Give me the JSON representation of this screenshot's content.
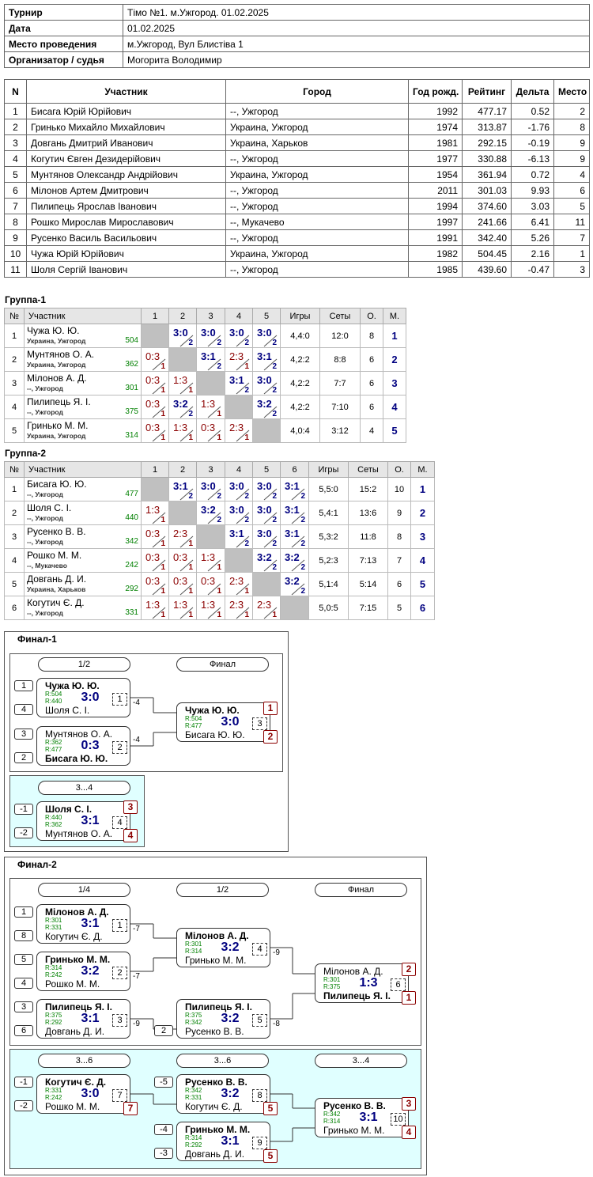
{
  "info": [
    {
      "label": "Турнир",
      "value": "Тімо №1. м.Ужгород. 01.02.2025"
    },
    {
      "label": "Дата",
      "value": "01.02.2025"
    },
    {
      "label": "Место проведения",
      "value": "м.Ужгород, Вул Блистіва 1"
    },
    {
      "label": "Организатор / судья",
      "value": "Могорита Володимир"
    }
  ],
  "participants": {
    "headers": [
      "N",
      "Участник",
      "Город",
      "Год рожд.",
      "Рейтинг",
      "Дельта",
      "Место"
    ],
    "rows": [
      [
        "1",
        "Бисага Юрій Юрійович",
        "--, Ужгород",
        "1992",
        "477.17",
        "0.52",
        "2"
      ],
      [
        "2",
        "Гринько Михайло Михайлович",
        "Украина, Ужгород",
        "1974",
        "313.87",
        "-1.76",
        "8"
      ],
      [
        "3",
        "Довгань Дмитрий Иванович",
        "Украина, Харьков",
        "1981",
        "292.15",
        "-0.19",
        "9"
      ],
      [
        "4",
        "Когутич Євген Дезидерійович",
        "--, Ужгород",
        "1977",
        "330.88",
        "-6.13",
        "9"
      ],
      [
        "5",
        "Мунтянов Олександр Андрійович",
        "Украина, Ужгород",
        "1954",
        "361.94",
        "0.72",
        "4"
      ],
      [
        "6",
        "Мілонов Артем Дмитрович",
        "--, Ужгород",
        "2011",
        "301.03",
        "9.93",
        "6"
      ],
      [
        "7",
        "Пилипець Ярослав Іванович",
        "--, Ужгород",
        "1994",
        "374.60",
        "3.03",
        "5"
      ],
      [
        "8",
        "Рошко Мирослав Мирославович",
        "--, Мукачево",
        "1997",
        "241.66",
        "6.41",
        "11"
      ],
      [
        "9",
        "Русенко Василь Васильович",
        "--, Ужгород",
        "1991",
        "342.40",
        "5.26",
        "7"
      ],
      [
        "10",
        "Чужа Юрій Юрійович",
        "Украина, Ужгород",
        "1982",
        "504.45",
        "2.16",
        "1"
      ],
      [
        "11",
        "Шоля Сергій Іванович",
        "--, Ужгород",
        "1985",
        "439.60",
        "-0.47",
        "3"
      ]
    ]
  },
  "groups": [
    {
      "title": "Группа-1",
      "headers": [
        "№",
        "Участник",
        "1",
        "2",
        "3",
        "4",
        "5",
        "Игры",
        "Сеты",
        "О.",
        "М."
      ],
      "rows": [
        {
          "num": "1",
          "name": "Чужа Ю. Ю.",
          "city": "Украина, Ужгород",
          "rating": "504",
          "results": [
            null,
            {
              "score": "3:0",
              "pts": "2"
            },
            {
              "score": "3:0",
              "pts": "2"
            },
            {
              "score": "3:0",
              "pts": "2"
            },
            {
              "score": "3:0",
              "pts": "2"
            }
          ],
          "games": "4,4:0",
          "sets": "12:0",
          "points": "8",
          "place": "1"
        },
        {
          "num": "2",
          "name": "Мунтянов О. А.",
          "city": "Украина, Ужгород",
          "rating": "362",
          "results": [
            {
              "score": "0:3",
              "pts": "1"
            },
            null,
            {
              "score": "3:1",
              "pts": "2"
            },
            {
              "score": "2:3",
              "pts": "1"
            },
            {
              "score": "3:1",
              "pts": "2"
            }
          ],
          "games": "4,2:2",
          "sets": "8:8",
          "points": "6",
          "place": "2"
        },
        {
          "num": "3",
          "name": "Мілонов А. Д.",
          "city": "--, Ужгород",
          "rating": "301",
          "results": [
            {
              "score": "0:3",
              "pts": "1"
            },
            {
              "score": "1:3",
              "pts": "1"
            },
            null,
            {
              "score": "3:1",
              "pts": "2"
            },
            {
              "score": "3:0",
              "pts": "2"
            }
          ],
          "games": "4,2:2",
          "sets": "7:7",
          "points": "6",
          "place": "3"
        },
        {
          "num": "4",
          "name": "Пилипець Я. І.",
          "city": "--, Ужгород",
          "rating": "375",
          "results": [
            {
              "score": "0:3",
              "pts": "1"
            },
            {
              "score": "3:2",
              "pts": "2"
            },
            {
              "score": "1:3",
              "pts": "1"
            },
            null,
            {
              "score": "3:2",
              "pts": "2"
            }
          ],
          "games": "4,2:2",
          "sets": "7:10",
          "points": "6",
          "place": "4"
        },
        {
          "num": "5",
          "name": "Гринько М. М.",
          "city": "Украина, Ужгород",
          "rating": "314",
          "results": [
            {
              "score": "0:3",
              "pts": "1"
            },
            {
              "score": "1:3",
              "pts": "1"
            },
            {
              "score": "0:3",
              "pts": "1"
            },
            {
              "score": "2:3",
              "pts": "1"
            },
            null
          ],
          "games": "4,0:4",
          "sets": "3:12",
          "points": "4",
          "place": "5"
        }
      ]
    },
    {
      "title": "Группа-2",
      "headers": [
        "№",
        "Участник",
        "1",
        "2",
        "3",
        "4",
        "5",
        "6",
        "Игры",
        "Сеты",
        "О.",
        "М."
      ],
      "rows": [
        {
          "num": "1",
          "name": "Бисага Ю. Ю.",
          "city": "--, Ужгород",
          "rating": "477",
          "results": [
            null,
            {
              "score": "3:1",
              "pts": "2"
            },
            {
              "score": "3:0",
              "pts": "2"
            },
            {
              "score": "3:0",
              "pts": "2"
            },
            {
              "score": "3:0",
              "pts": "2"
            },
            {
              "score": "3:1",
              "pts": "2"
            }
          ],
          "games": "5,5:0",
          "sets": "15:2",
          "points": "10",
          "place": "1"
        },
        {
          "num": "2",
          "name": "Шоля С. І.",
          "city": "--, Ужгород",
          "rating": "440",
          "results": [
            {
              "score": "1:3",
              "pts": "1"
            },
            null,
            {
              "score": "3:2",
              "pts": "2"
            },
            {
              "score": "3:0",
              "pts": "2"
            },
            {
              "score": "3:0",
              "pts": "2"
            },
            {
              "score": "3:1",
              "pts": "2"
            }
          ],
          "games": "5,4:1",
          "sets": "13:6",
          "points": "9",
          "place": "2"
        },
        {
          "num": "3",
          "name": "Русенко В. В.",
          "city": "--, Ужгород",
          "rating": "342",
          "results": [
            {
              "score": "0:3",
              "pts": "1"
            },
            {
              "score": "2:3",
              "pts": "1"
            },
            null,
            {
              "score": "3:1",
              "pts": "2"
            },
            {
              "score": "3:0",
              "pts": "2"
            },
            {
              "score": "3:1",
              "pts": "2"
            }
          ],
          "games": "5,3:2",
          "sets": "11:8",
          "points": "8",
          "place": "3"
        },
        {
          "num": "4",
          "name": "Рошко М. М.",
          "city": "--, Мукачево",
          "rating": "242",
          "results": [
            {
              "score": "0:3",
              "pts": "1"
            },
            {
              "score": "0:3",
              "pts": "1"
            },
            {
              "score": "1:3",
              "pts": "1"
            },
            null,
            {
              "score": "3:2",
              "pts": "2"
            },
            {
              "score": "3:2",
              "pts": "2"
            }
          ],
          "games": "5,2:3",
          "sets": "7:13",
          "points": "7",
          "place": "4"
        },
        {
          "num": "5",
          "name": "Довгань Д. И.",
          "city": "Украина, Харьков",
          "rating": "292",
          "results": [
            {
              "score": "0:3",
              "pts": "1"
            },
            {
              "score": "0:3",
              "pts": "1"
            },
            {
              "score": "0:3",
              "pts": "1"
            },
            {
              "score": "2:3",
              "pts": "1"
            },
            null,
            {
              "score": "3:2",
              "pts": "2"
            }
          ],
          "games": "5,1:4",
          "sets": "5:14",
          "points": "6",
          "place": "5"
        },
        {
          "num": "6",
          "name": "Когутич Є. Д.",
          "city": "--, Ужгород",
          "rating": "331",
          "results": [
            {
              "score": "1:3",
              "pts": "1"
            },
            {
              "score": "1:3",
              "pts": "1"
            },
            {
              "score": "1:3",
              "pts": "1"
            },
            {
              "score": "2:3",
              "pts": "1"
            },
            {
              "score": "2:3",
              "pts": "1"
            },
            null
          ],
          "games": "5,0:5",
          "sets": "7:15",
          "points": "5",
          "place": "6"
        }
      ]
    }
  ],
  "finals": [
    {
      "title": "Финал-1",
      "panels": [
        {
          "rounds": [
            "1/2",
            "Финал"
          ],
          "matches": [
            {
              "seed1": "1",
              "p1": "Чужа Ю. Ю.",
              "r1": "R:504",
              "score": "3:0",
              "game": "1",
              "p2": "Шоля С. І.",
              "r2": "R:440",
              "seed2": "4",
              "out": "-4"
            },
            {
              "seed1": "3",
              "p1": "Мунтянов О. А.",
              "r1": "R:362",
              "score": "0:3",
              "game": "2",
              "p2": "Бисага Ю. Ю.",
              "r2": "R:477",
              "seed2": "2",
              "out": "-4"
            },
            {
              "p1": "Чужа Ю. Ю.",
              "r1": "R:504",
              "score": "3:0",
              "game": "3",
              "p2": "Бисага Ю. Ю.",
              "r2": "R:477",
              "place1": "1",
              "place2": "2"
            }
          ]
        },
        {
          "rounds": [
            "3...4"
          ],
          "matches": [
            {
              "seed1": "-1",
              "p1": "Шоля С. І.",
              "r1": "R:440",
              "score": "3:1",
              "game": "4",
              "p2": "Мунтянов О. А.",
              "r2": "R:362",
              "seed2": "-2",
              "place1": "3",
              "place2": "4"
            }
          ]
        }
      ]
    },
    {
      "title": "Финал-2",
      "panels": [
        {
          "rounds": [
            "1/4",
            "1/2",
            "Финал"
          ],
          "matches": [
            {
              "seed1": "1",
              "p1": "Мілонов А. Д.",
              "r1": "R:301",
              "score": "3:1",
              "game": "1",
              "p2": "Когутич Є. Д.",
              "r2": "R:331",
              "seed2": "8",
              "out": "-7"
            },
            {
              "seed1": "5",
              "p1": "Гринько М. М.",
              "r1": "R:314",
              "score": "3:2",
              "game": "2",
              "p2": "Рошко М. М.",
              "r2": "R:242",
              "seed2": "4",
              "out": "-7"
            },
            {
              "seed1": "3",
              "p1": "Пилипець Я. І.",
              "r1": "R:375",
              "score": "3:1",
              "game": "3",
              "p2": "Довгань Д. И.",
              "r2": "R:292",
              "seed2": "6",
              "out": "-9"
            },
            {
              "p1": "Мілонов А. Д.",
              "r1": "R:301",
              "score": "3:2",
              "game": "4",
              "p2": "Гринько М. М.",
              "r2": "R:314",
              "out": "-9"
            },
            {
              "p1": "Пилипець Я. І.",
              "r1": "R:375",
              "score": "3:2",
              "game": "5",
              "p2": "Русенко В. В.",
              "r2": "R:342",
              "seed2": "2",
              "out": "-8"
            },
            {
              "p1": "Мілонов А. Д.",
              "r1": "R:301",
              "score": "1:3",
              "game": "6",
              "p2": "Пилипець Я. І.",
              "r2": "R:375",
              "place1": "2",
              "place2": "1"
            }
          ]
        },
        {
          "rounds": [
            "3...6",
            "3...6",
            "3...4"
          ],
          "matches": [
            {
              "seed1": "-1",
              "p1": "Когутич Є. Д.",
              "r1": "R:331",
              "score": "3:0",
              "game": "7",
              "p2": "Рошко М. М.",
              "r2": "R:242",
              "seed2": "-2",
              "place2": "7"
            },
            {
              "seed1": "-5",
              "p1": "Русенко В. В.",
              "r1": "R:342",
              "score": "3:2",
              "game": "8",
              "p2": "Когутич Є. Д.",
              "r2": "R:331",
              "place2": "5"
            },
            {
              "seed1": "-4",
              "p1": "Гринько М. М.",
              "r1": "R:314",
              "score": "3:1",
              "game": "9",
              "p2": "Довгань Д. И.",
              "r2": "R:292",
              "seed2": "-3",
              "place2": "5"
            },
            {
              "p1": "Русенко В. В.",
              "r1": "R:342",
              "score": "3:1",
              "game": "10",
              "p2": "Гринько М. М.",
              "r2": "R:314",
              "place1": "3",
              "place2": "4"
            }
          ]
        }
      ]
    }
  ]
}
